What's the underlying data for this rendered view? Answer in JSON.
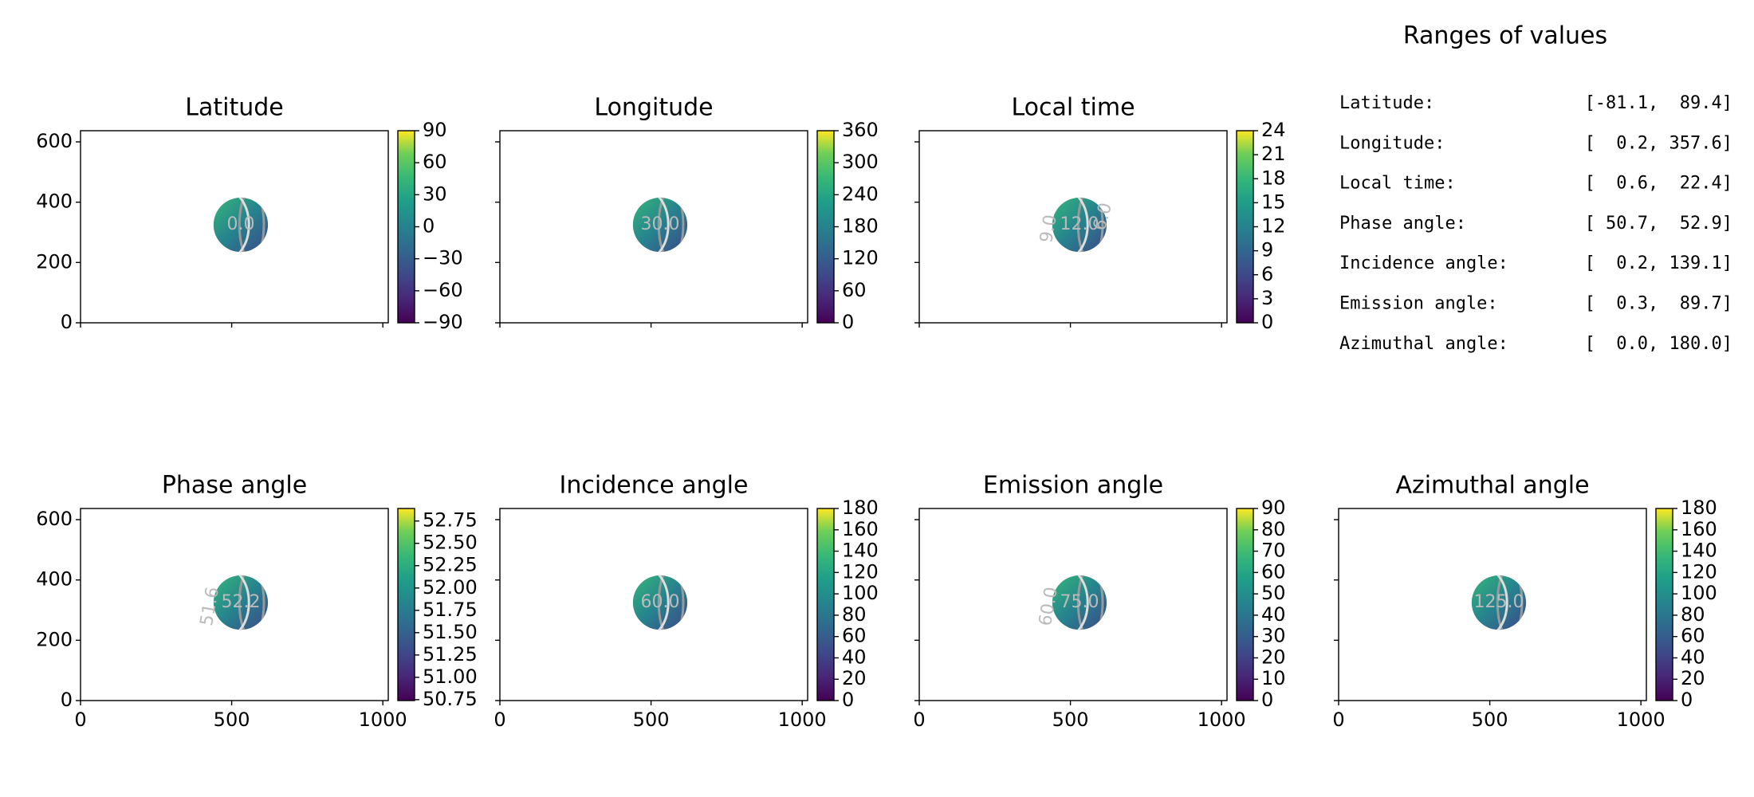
{
  "chart_data": [
    {
      "type": "image",
      "title": "Latitude",
      "xlim": [
        0,
        1018
      ],
      "ylim": [
        0,
        637
      ],
      "xticks": [
        0,
        500,
        1000
      ],
      "yticks": [
        0,
        200,
        400,
        600
      ],
      "x_ticklabels": false,
      "y_ticklabels": true,
      "disk": {
        "center": [
          530,
          325
        ],
        "radius": 90
      },
      "contour_labels": [
        "0.0"
      ],
      "colorbar": {
        "lim": [
          -90,
          90
        ],
        "ticks": [
          {
            "value": -90,
            "label": "−90"
          },
          {
            "value": -60,
            "label": "−60"
          },
          {
            "value": -30,
            "label": "−30"
          },
          0,
          30,
          60,
          90
        ]
      }
    },
    {
      "type": "image",
      "title": "Longitude",
      "xlim": [
        0,
        1018
      ],
      "ylim": [
        0,
        637
      ],
      "xticks": [
        0,
        500,
        1000
      ],
      "yticks": [
        0,
        200,
        400,
        600
      ],
      "x_ticklabels": false,
      "y_ticklabels": false,
      "disk": {
        "center": [
          530,
          325
        ],
        "radius": 90
      },
      "contour_labels": [
        "30.0"
      ],
      "colorbar": {
        "lim": [
          0,
          360
        ],
        "ticks": [
          0,
          60,
          120,
          180,
          240,
          300,
          360
        ]
      }
    },
    {
      "type": "image",
      "title": "Local time",
      "xlim": [
        0,
        1018
      ],
      "ylim": [
        0,
        637
      ],
      "xticks": [
        0,
        500,
        1000
      ],
      "yticks": [
        0,
        200,
        400,
        600
      ],
      "x_ticklabels": false,
      "y_ticklabels": false,
      "disk": {
        "center": [
          530,
          325
        ],
        "radius": 90
      },
      "contour_labels": [
        "12.0",
        "9.0",
        "6.0"
      ],
      "colorbar": {
        "lim": [
          0,
          24
        ],
        "ticks": [
          0,
          3,
          6,
          9,
          12,
          15,
          18,
          21,
          24
        ]
      }
    },
    {
      "type": "image",
      "title": "Phase angle",
      "xlim": [
        0,
        1018
      ],
      "ylim": [
        0,
        637
      ],
      "xticks": [
        0,
        500,
        1000
      ],
      "yticks": [
        0,
        200,
        400,
        600
      ],
      "x_ticklabels": true,
      "y_ticklabels": true,
      "disk": {
        "center": [
          530,
          325
        ],
        "radius": 90
      },
      "contour_labels": [
        "52.2",
        "51.6"
      ],
      "colorbar": {
        "lim": [
          50.74,
          52.89
        ],
        "ticks": [
          {
            "value": 50.75,
            "label": "50.75"
          },
          {
            "value": 51,
            "label": "51.00"
          },
          {
            "value": 51.25,
            "label": "51.25"
          },
          {
            "value": 51.5,
            "label": "51.50"
          },
          {
            "value": 51.75,
            "label": "51.75"
          },
          {
            "value": 52,
            "label": "52.00"
          },
          {
            "value": 52.25,
            "label": "52.25"
          },
          {
            "value": 52.5,
            "label": "52.50"
          },
          {
            "value": 52.75,
            "label": "52.75"
          }
        ]
      }
    },
    {
      "type": "image",
      "title": "Incidence angle",
      "xlim": [
        0,
        1018
      ],
      "ylim": [
        0,
        637
      ],
      "xticks": [
        0,
        500,
        1000
      ],
      "yticks": [
        0,
        200,
        400,
        600
      ],
      "x_ticklabels": true,
      "y_ticklabels": false,
      "disk": {
        "center": [
          530,
          325
        ],
        "radius": 90
      },
      "contour_labels": [
        "60.0"
      ],
      "colorbar": {
        "lim": [
          0,
          180
        ],
        "ticks": [
          0,
          20,
          40,
          60,
          80,
          100,
          120,
          140,
          160,
          180
        ]
      }
    },
    {
      "type": "image",
      "title": "Emission angle",
      "xlim": [
        0,
        1018
      ],
      "ylim": [
        0,
        637
      ],
      "xticks": [
        0,
        500,
        1000
      ],
      "yticks": [
        0,
        200,
        400,
        600
      ],
      "x_ticklabels": true,
      "y_ticklabels": false,
      "disk": {
        "center": [
          530,
          325
        ],
        "radius": 90
      },
      "contour_labels": [
        "75.0",
        "60.0"
      ],
      "colorbar": {
        "lim": [
          0,
          90
        ],
        "ticks": [
          0,
          10,
          20,
          30,
          40,
          50,
          60,
          70,
          80,
          90
        ]
      }
    },
    {
      "type": "image",
      "title": "Azimuthal angle",
      "xlim": [
        0,
        1018
      ],
      "ylim": [
        0,
        637
      ],
      "xticks": [
        0,
        500,
        1000
      ],
      "yticks": [
        0,
        200,
        400,
        600
      ],
      "x_ticklabels": true,
      "y_ticklabels": false,
      "disk": {
        "center": [
          530,
          325
        ],
        "radius": 90
      },
      "contour_labels": [
        "125.0"
      ],
      "colorbar": {
        "lim": [
          0,
          180
        ],
        "ticks": [
          0,
          20,
          40,
          60,
          80,
          100,
          120,
          140,
          160,
          180
        ]
      }
    }
  ],
  "ranges_panel": {
    "title": "Ranges of values",
    "rows": [
      [
        "Latitude:",
        "[-81.1,  89.4]"
      ],
      [
        "Longitude:",
        "[  0.2, 357.6]"
      ],
      [
        "Local time:",
        "[  0.6,  22.4]"
      ],
      [
        "Phase angle:",
        "[ 50.7,  52.9]"
      ],
      [
        "Incidence angle:",
        "[  0.2, 139.1]"
      ],
      [
        "Emission angle:",
        "[  0.3,  89.7]"
      ],
      [
        "Azimuthal angle:",
        "[  0.0, 180.0]"
      ]
    ]
  }
}
